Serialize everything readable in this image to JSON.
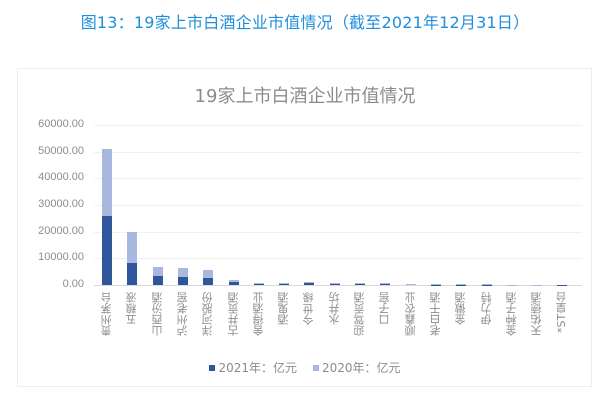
{
  "figure_title": "图13：19家上市白酒企业市值情况（截至2021年12月31日）",
  "chart_data": {
    "type": "bar",
    "stacked": true,
    "title": "19家上市白酒企业市值情况",
    "xlabel": "",
    "ylabel": "",
    "ylim": [
      0,
      60000
    ],
    "yticks": [
      "0.00",
      "10000.00",
      "20000.00",
      "30000.00",
      "40000.00",
      "50000.00",
      "60000.00"
    ],
    "grid": true,
    "legend_position": "bottom",
    "categories": [
      "贵州茅台",
      "五粮液",
      "山西汾酒",
      "泸州老窖",
      "洋河股份",
      "古井贡酒",
      "舍得酒业",
      "酒鬼酒",
      "今世缘",
      "水井坊",
      "迎驾贡酒",
      "口子窖",
      "顺鑫农业",
      "老白干酒",
      "金徽酒",
      "伊力特",
      "金种子酒",
      "天佑德酒",
      "*ST皇台"
    ],
    "series": [
      {
        "name": "2021年：亿元",
        "color": "#2f559b",
        "values": [
          25800,
          8400,
          3300,
          3100,
          2700,
          1000,
          550,
          450,
          700,
          350,
          450,
          400,
          200,
          180,
          170,
          110,
          130,
          80,
          30
        ]
      },
      {
        "name": "2020年：亿元",
        "color": "#a9b8de",
        "values": [
          25100,
          11500,
          3500,
          3400,
          3100,
          1000,
          250,
          250,
          550,
          300,
          250,
          350,
          250,
          200,
          160,
          110,
          60,
          40,
          20
        ]
      }
    ]
  },
  "legend": [
    {
      "label": "2021年：亿元",
      "color": "#2f559b"
    },
    {
      "label": "2020年：亿元",
      "color": "#a9b8de"
    }
  ]
}
